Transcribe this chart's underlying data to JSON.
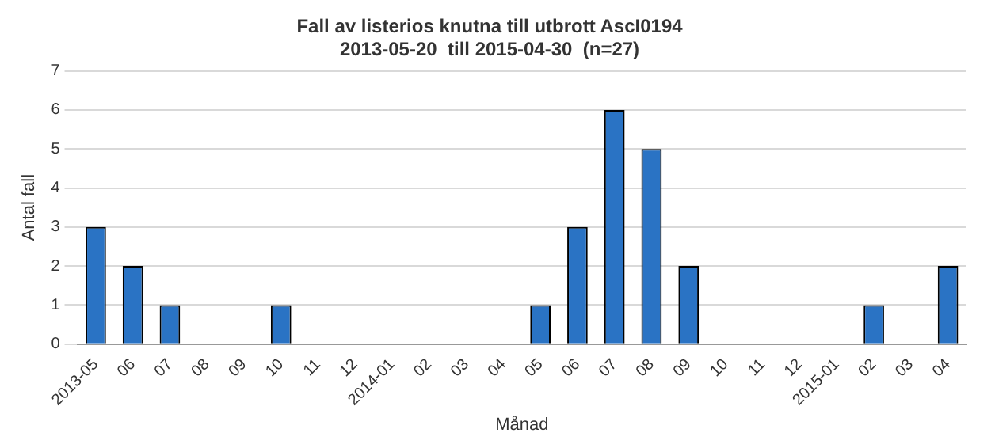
{
  "chart_data": {
    "type": "bar",
    "title": "Fall av listerios knutna till utbrott AscI0194",
    "subtitle": "2013-05-20  till 2015-04-30  (n=27)",
    "xlabel": "Månad",
    "ylabel": "Antal fall",
    "categories": [
      "2013-05",
      "06",
      "07",
      "08",
      "09",
      "10",
      "11",
      "12",
      "2014-01",
      "02",
      "03",
      "04",
      "05",
      "06",
      "07",
      "08",
      "09",
      "10",
      "11",
      "12",
      "2015-01",
      "02",
      "03",
      "04"
    ],
    "values": [
      3,
      2,
      1,
      0,
      0,
      1,
      0,
      0,
      0,
      0,
      0,
      0,
      1,
      3,
      6,
      5,
      2,
      0,
      0,
      0,
      0,
      1,
      0,
      2
    ],
    "color": "#2a73c4",
    "ylim": [
      0,
      7
    ],
    "yticks": [
      0,
      1,
      2,
      3,
      4,
      5,
      6,
      7
    ],
    "grid": "y",
    "legend": false
  }
}
